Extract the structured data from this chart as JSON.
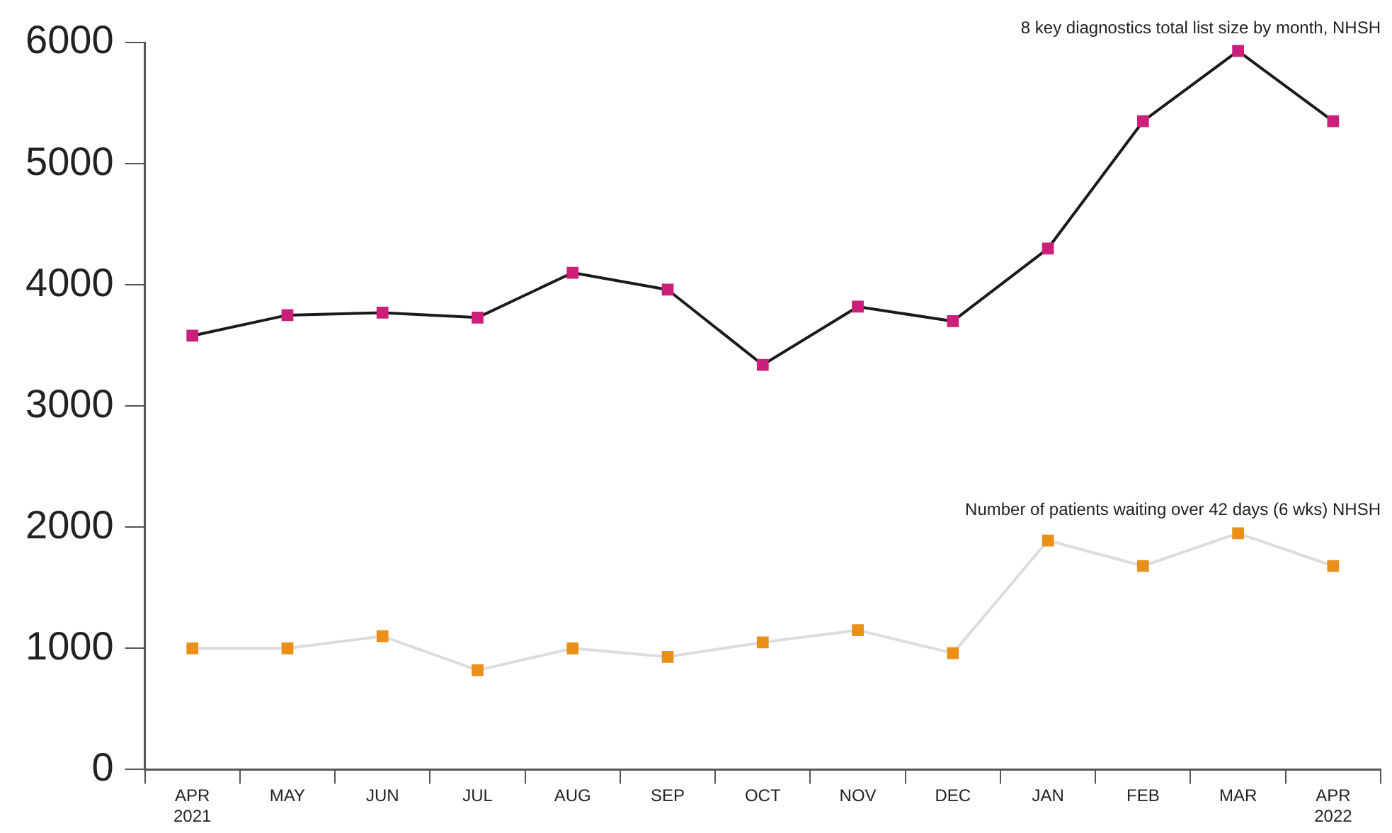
{
  "chart_data": {
    "type": "line",
    "categories": [
      "APR\n2021",
      "MAY",
      "JUN",
      "JUL",
      "AUG",
      "SEP",
      "OCT",
      "NOV",
      "DEC",
      "JAN",
      "FEB",
      "MAR",
      "APR\n2022"
    ],
    "series": [
      {
        "name": "8 key diagnostics total list size by month, NHSH",
        "color": "#1a1a1a",
        "colors": [
          "#cc1f7a",
          "#cc1f7a",
          "#cc1f7a",
          "#cc1f7a",
          "#cc1f7a",
          "#cc1f7a",
          "#cc1f7a",
          "#cc1f7a",
          "#cc1f7a",
          "#cc1f7a",
          "#cc1f7a",
          "#cc1f7a",
          "#cc1f7a"
        ],
        "values": [
          3580,
          3750,
          3770,
          3730,
          4100,
          3960,
          3340,
          3820,
          3700,
          4300,
          5350,
          5930,
          5350
        ]
      },
      {
        "name": "Number of patients waiting over 42 days (6 wks) NHSH",
        "color": "#dcdcdc",
        "colors": [
          "#e8901a",
          "#e8901a",
          "#e8901a",
          "#e8901a",
          "#e8901a",
          "#e8901a",
          "#e8901a",
          "#e8901a",
          "#e8901a",
          "#e8901a",
          "#e8901a",
          "#e8901a",
          "#e8901a"
        ],
        "values": [
          1000,
          1000,
          1100,
          820,
          1000,
          930,
          1050,
          1150,
          960,
          1890,
          1680,
          1950,
          1680
        ]
      }
    ],
    "ylim": [
      0,
      6000
    ],
    "yticks": [
      0,
      1000,
      2000,
      3000,
      4000,
      5000,
      6000
    ],
    "grid": false,
    "legend": false,
    "marker": "square",
    "line_style": "solid"
  }
}
